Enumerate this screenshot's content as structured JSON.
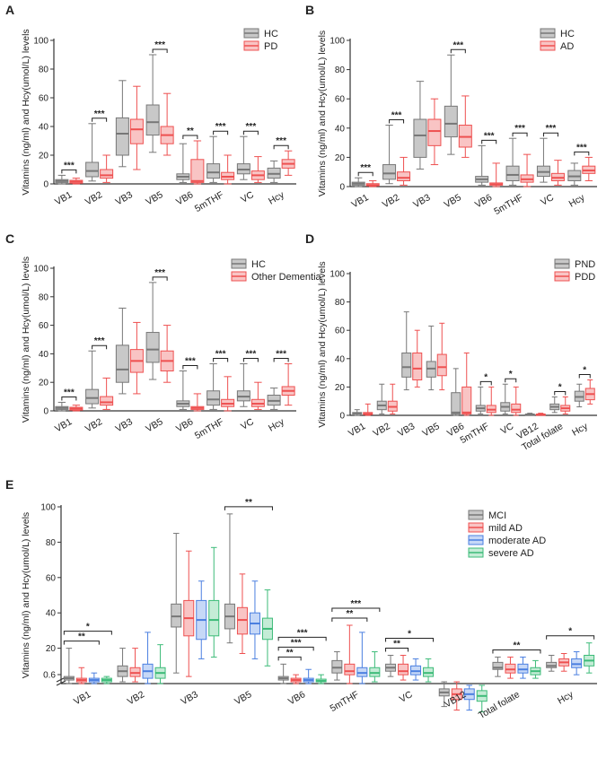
{
  "chart_data": [
    {
      "panel": "A",
      "type": "boxplot",
      "ylabel": "Vitamins (ng/ml) and Hcy(umol/L) levels",
      "ylim": [
        0,
        100
      ],
      "yticks": [
        0,
        20,
        40,
        60,
        80,
        100
      ],
      "legend": [
        "HC",
        "PD"
      ],
      "legend_position": "top-right",
      "colors": [
        "#777777",
        "#ee5050"
      ],
      "fills": [
        "#c8c8c8",
        "#f9c4c4"
      ],
      "categories": [
        "VB1",
        "VB2",
        "VB3",
        "VB5",
        "VB6",
        "5mTHF",
        "VC",
        "Hcy"
      ],
      "boxes": [
        [
          [
            0,
            1,
            2,
            3,
            6
          ],
          [
            0,
            0.5,
            1.5,
            2.5,
            4
          ]
        ],
        [
          [
            2,
            5,
            9,
            15,
            42
          ],
          [
            1,
            4,
            6,
            10,
            20
          ]
        ],
        [
          [
            12,
            20,
            35,
            46,
            72
          ],
          [
            10,
            28,
            38,
            45,
            68
          ]
        ],
        [
          [
            22,
            34,
            43,
            55,
            90
          ],
          [
            20,
            28,
            34,
            40,
            63
          ]
        ],
        [
          [
            1,
            3,
            5,
            7,
            28
          ],
          [
            0,
            1,
            2,
            17,
            30
          ]
        ],
        [
          [
            1,
            4,
            8,
            14,
            33
          ],
          [
            0,
            3,
            5,
            8,
            20
          ]
        ],
        [
          [
            3,
            7,
            10,
            14,
            33
          ],
          [
            1,
            3,
            6,
            9,
            19
          ]
        ],
        [
          [
            1,
            4,
            7,
            11,
            16
          ],
          [
            6,
            11,
            14,
            17,
            23
          ]
        ]
      ],
      "significance": [
        "***",
        "***",
        "",
        "***",
        "**",
        "***",
        "***",
        "***"
      ]
    },
    {
      "panel": "B",
      "type": "boxplot",
      "ylabel": "Vitamins (ng/ml) and Hcy(umol/L) levels",
      "ylim": [
        0,
        100
      ],
      "yticks": [
        0,
        20,
        40,
        60,
        80,
        100
      ],
      "legend": [
        "HC",
        "AD"
      ],
      "legend_position": "top-right",
      "colors": [
        "#777777",
        "#ee5050"
      ],
      "fills": [
        "#c8c8c8",
        "#f9c4c4"
      ],
      "categories": [
        "VB1",
        "VB2",
        "VB3",
        "VB5",
        "VB6",
        "5mTHF",
        "VC",
        "Hcy"
      ],
      "boxes": [
        [
          [
            0,
            1,
            2,
            3,
            6
          ],
          [
            0,
            0.5,
            1,
            2,
            4
          ]
        ],
        [
          [
            2,
            5,
            9,
            15,
            42
          ],
          [
            1,
            4,
            6,
            10,
            20
          ]
        ],
        [
          [
            12,
            20,
            35,
            46,
            72
          ],
          [
            15,
            28,
            38,
            46,
            60
          ]
        ],
        [
          [
            22,
            34,
            43,
            55,
            90
          ],
          [
            20,
            27,
            34,
            42,
            62
          ]
        ],
        [
          [
            1,
            3,
            5,
            7,
            28
          ],
          [
            0,
            1,
            1.5,
            2.5,
            16
          ]
        ],
        [
          [
            1,
            4,
            8,
            14,
            33
          ],
          [
            0,
            3,
            5,
            8,
            22
          ]
        ],
        [
          [
            3,
            7,
            10,
            14,
            33
          ],
          [
            1,
            4,
            6,
            9,
            18
          ]
        ],
        [
          [
            1,
            4,
            7,
            11,
            16
          ],
          [
            4,
            9,
            11,
            14,
            20
          ]
        ]
      ],
      "significance": [
        "***",
        "***",
        "",
        "***",
        "***",
        "***",
        "***",
        "***"
      ]
    },
    {
      "panel": "C",
      "type": "boxplot",
      "ylabel": "Vitamins (ng/ml) and Hcy(umol/L) levels",
      "ylim": [
        0,
        100
      ],
      "yticks": [
        0,
        20,
        40,
        60,
        80,
        100
      ],
      "legend": [
        "HC",
        "Other Dementia"
      ],
      "legend_position": "top-right",
      "colors": [
        "#777777",
        "#ee5050"
      ],
      "fills": [
        "#c8c8c8",
        "#f9c4c4"
      ],
      "categories": [
        "VB1",
        "VB2",
        "VB3",
        "VB5",
        "VB6",
        "5mTHF",
        "VC",
        "Hcy"
      ],
      "boxes": [
        [
          [
            0,
            1,
            2,
            3,
            6
          ],
          [
            0,
            0.5,
            1.5,
            2.5,
            4
          ]
        ],
        [
          [
            2,
            5,
            9,
            15,
            42
          ],
          [
            1,
            4,
            6,
            10,
            23
          ]
        ],
        [
          [
            12,
            20,
            29,
            46,
            72
          ],
          [
            12,
            27,
            35,
            43,
            62
          ]
        ],
        [
          [
            22,
            34,
            43,
            55,
            90
          ],
          [
            20,
            28,
            35,
            42,
            60
          ]
        ],
        [
          [
            1,
            3,
            5,
            7,
            28
          ],
          [
            0,
            1,
            2,
            3,
            12
          ]
        ],
        [
          [
            1,
            4,
            8,
            14,
            33
          ],
          [
            0,
            3,
            5,
            8,
            24
          ]
        ],
        [
          [
            3,
            7,
            10,
            14,
            33
          ],
          [
            1,
            3,
            5,
            8,
            20
          ]
        ],
        [
          [
            1,
            4,
            7,
            11,
            16
          ],
          [
            4,
            11,
            14,
            17,
            33
          ]
        ]
      ],
      "significance": [
        "***",
        "***",
        "",
        "***",
        "***",
        "***",
        "***",
        "***"
      ]
    },
    {
      "panel": "D",
      "type": "boxplot",
      "ylabel": "Vitamins (ng/ml) and Hcy(umol/L) levels",
      "ylim": [
        0,
        100
      ],
      "yticks": [
        0,
        20,
        40,
        60,
        80,
        100
      ],
      "legend": [
        "PND",
        "PDD"
      ],
      "legend_position": "top-right",
      "colors": [
        "#777777",
        "#ee5050"
      ],
      "fills": [
        "#c8c8c8",
        "#f9c4c4"
      ],
      "categories": [
        "VB1",
        "VB2",
        "VB3",
        "VB5",
        "VB6",
        "5mTHF",
        "VC",
        "VB12",
        "Total folate",
        "Hcy"
      ],
      "boxes": [
        [
          [
            0,
            1,
            1.5,
            2,
            4
          ],
          [
            0,
            0.5,
            1,
            2,
            8
          ]
        ],
        [
          [
            1,
            4,
            7,
            10,
            22
          ],
          [
            1,
            3,
            6,
            10,
            22
          ]
        ],
        [
          [
            18,
            27,
            34,
            44,
            73
          ],
          [
            20,
            25,
            33,
            44,
            60
          ]
        ],
        [
          [
            18,
            27,
            33,
            38,
            63
          ],
          [
            18,
            28,
            34,
            43,
            65
          ]
        ],
        [
          [
            0,
            1,
            2,
            16,
            33
          ],
          [
            0,
            1,
            2,
            20,
            44
          ]
        ],
        [
          [
            1,
            3,
            5,
            7,
            20
          ],
          [
            0,
            2,
            4,
            7,
            20
          ]
        ],
        [
          [
            1,
            3,
            6,
            9,
            22
          ],
          [
            0,
            2,
            4,
            8,
            20
          ]
        ],
        [
          [
            0,
            0.3,
            0.6,
            0.9,
            1.5
          ],
          [
            0,
            0.3,
            0.6,
            0.9,
            1.5
          ]
        ],
        [
          [
            2,
            4,
            6,
            8,
            13
          ],
          [
            1,
            3,
            5,
            7,
            13
          ]
        ],
        [
          [
            6,
            10,
            13,
            17,
            22
          ],
          [
            8,
            11,
            15,
            19,
            25
          ]
        ]
      ],
      "significance": [
        "",
        "",
        "",
        "",
        "",
        "*",
        "*",
        "",
        "*",
        "*"
      ]
    },
    {
      "panel": "E",
      "type": "boxplot",
      "ylabel": "Vitamins (ng/ml) and Hcy(umol/L) levels",
      "ylim": [
        0,
        100
      ],
      "yticks": [
        0.6,
        20,
        40,
        60,
        80,
        100
      ],
      "axis_break": true,
      "legend": [
        "MCI",
        "mild AD",
        "moderate AD",
        "severe AD"
      ],
      "legend_position": "right",
      "colors": [
        "#777777",
        "#ee5050",
        "#4a7fe0",
        "#3cbb78"
      ],
      "fills": [
        "#c8c8c8",
        "#f9c4c4",
        "#c6d8f7",
        "#c4ecd6"
      ],
      "categories": [
        "VB1",
        "VB2",
        "VB3",
        "VB5",
        "VB6",
        "5mTHF",
        "VC",
        "VB12",
        "Total folate",
        "Hcy"
      ],
      "boxes": [
        [
          [
            0,
            2,
            3,
            4,
            20
          ],
          [
            0,
            1,
            2,
            3,
            9
          ],
          [
            0,
            1,
            2,
            3,
            6
          ],
          [
            0,
            1,
            2,
            3,
            4
          ]
        ],
        [
          [
            1,
            4,
            7,
            10,
            20
          ],
          [
            1,
            4,
            6,
            9,
            20
          ],
          [
            0,
            3,
            7,
            11,
            29
          ],
          [
            0,
            3,
            6,
            9,
            22
          ]
        ],
        [
          [
            6,
            32,
            38,
            45,
            85
          ],
          [
            4,
            27,
            37,
            47,
            75
          ],
          [
            14,
            25,
            36,
            47,
            58
          ],
          [
            15,
            27,
            36,
            47,
            77
          ]
        ],
        [
          [
            23,
            31,
            38,
            45,
            96
          ],
          [
            17,
            28,
            36,
            43,
            62
          ],
          [
            14,
            28,
            34,
            40,
            58
          ],
          [
            10,
            25,
            31,
            37,
            53
          ]
        ],
        [
          [
            0,
            2,
            3,
            4,
            11
          ],
          [
            0,
            1,
            2,
            3,
            5
          ],
          [
            0,
            1,
            2,
            3,
            8
          ],
          [
            0,
            1,
            1.5,
            2.5,
            5
          ]
        ],
        [
          [
            2,
            6,
            9,
            13,
            18
          ],
          [
            0,
            5,
            7,
            11,
            33
          ],
          [
            0,
            4,
            6,
            9,
            29
          ],
          [
            1,
            4,
            6,
            9,
            18
          ]
        ],
        [
          [
            4,
            7,
            9,
            11,
            16
          ],
          [
            2,
            5,
            7,
            11,
            16
          ],
          [
            2,
            5,
            7,
            10,
            14
          ],
          [
            1,
            4,
            6,
            9,
            14
          ]
        ],
        [
          [
            -13,
            -7,
            -5,
            -3,
            1
          ],
          [
            -15,
            -9,
            -6,
            -3,
            1
          ],
          [
            -15,
            -9,
            -6,
            -3,
            -1
          ],
          [
            -16,
            -10,
            -7,
            -4,
            -1
          ]
        ],
        [
          [
            4,
            8,
            9,
            12,
            15
          ],
          [
            3,
            6,
            8,
            11,
            15
          ],
          [
            3,
            6,
            8,
            11,
            15
          ],
          [
            3,
            5,
            7,
            9,
            13
          ]
        ],
        [
          [
            7,
            9,
            10,
            12,
            16
          ],
          [
            7,
            10,
            12,
            14,
            17
          ],
          [
            5,
            9,
            11,
            14,
            18
          ],
          [
            6,
            10,
            13,
            16,
            23
          ]
        ]
      ],
      "significance_brackets": [
        {
          "category": "VB1",
          "from": 0,
          "to": 3,
          "label": "*"
        },
        {
          "category": "VB1",
          "from": 0,
          "to": 2,
          "label": "**"
        },
        {
          "category": "VB5",
          "from": 0,
          "to": 3,
          "label": "**"
        },
        {
          "category": "VB6",
          "from": 0,
          "to": 3,
          "label": "***"
        },
        {
          "category": "VB6",
          "from": 0,
          "to": 2,
          "label": "***"
        },
        {
          "category": "VB6",
          "from": 0,
          "to": 1,
          "label": "**"
        },
        {
          "category": "5mTHF",
          "from": 0,
          "to": 3,
          "label": "***"
        },
        {
          "category": "5mTHF",
          "from": 0,
          "to": 2,
          "label": "**"
        },
        {
          "category": "VC",
          "from": 0,
          "to": 3,
          "label": "*"
        },
        {
          "category": "VC",
          "from": 0,
          "to": 1,
          "label": "**"
        },
        {
          "category": "Total folate",
          "from": 0,
          "to": 3,
          "label": "**"
        },
        {
          "category": "Hcy",
          "from": 0,
          "to": 3,
          "label": "*"
        }
      ]
    }
  ]
}
